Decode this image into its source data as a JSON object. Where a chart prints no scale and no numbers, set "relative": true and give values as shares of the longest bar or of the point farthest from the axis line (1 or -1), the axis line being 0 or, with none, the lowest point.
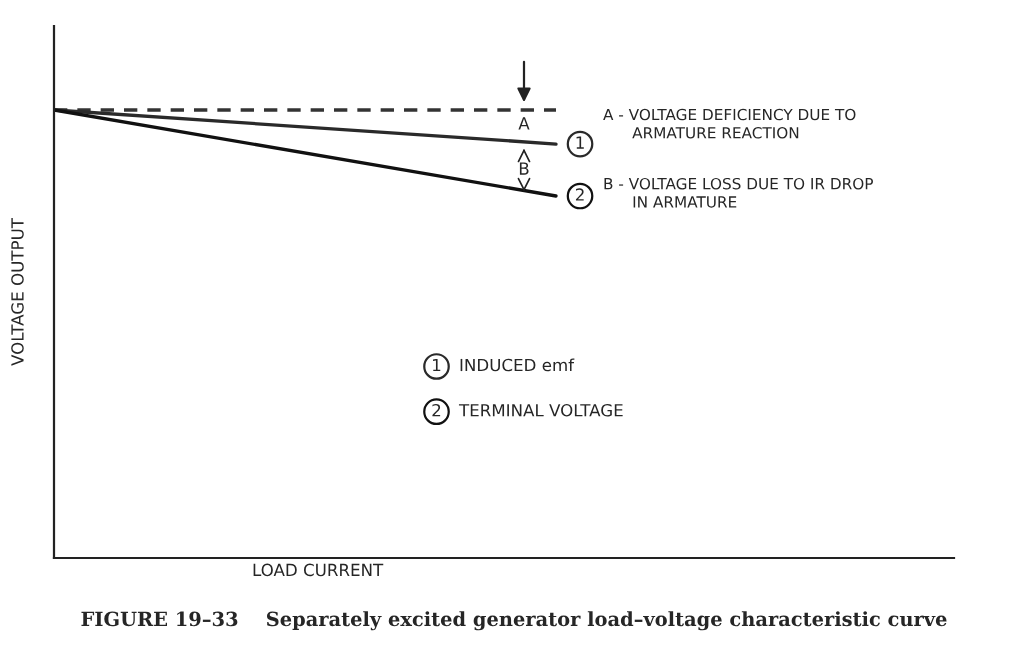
{
  "chart_data": {
    "type": "line",
    "relative": true,
    "xlabel": "LOAD CURRENT",
    "ylabel": "VOLTAGE OUTPUT",
    "categories": [
      null,
      null
    ],
    "series": [
      {
        "values": [
          1,
          1
        ],
        "color": "#333333",
        "line_style": "dashed"
      },
      {
        "name": "1",
        "values": [
          1,
          0.924
        ],
        "color": "#2a2a2a",
        "line_style": "solid"
      },
      {
        "name": "2",
        "values": [
          1,
          0.808
        ],
        "color": "#111111",
        "line_style": "solid"
      }
    ],
    "annotations": [
      "A",
      "B",
      "A - VOLTAGE DEFICIENCY DUE TO\n      ARMATURE REACTION",
      "B - VOLTAGE LOSS DUE TO IR DROP\n      IN ARMATURE",
      "INDUCED emf",
      "TERMINAL VOLTAGE",
      "FIGURE 19–33    Separately excited generator load–voltage characteristic curve"
    ],
    "grid": false
  }
}
